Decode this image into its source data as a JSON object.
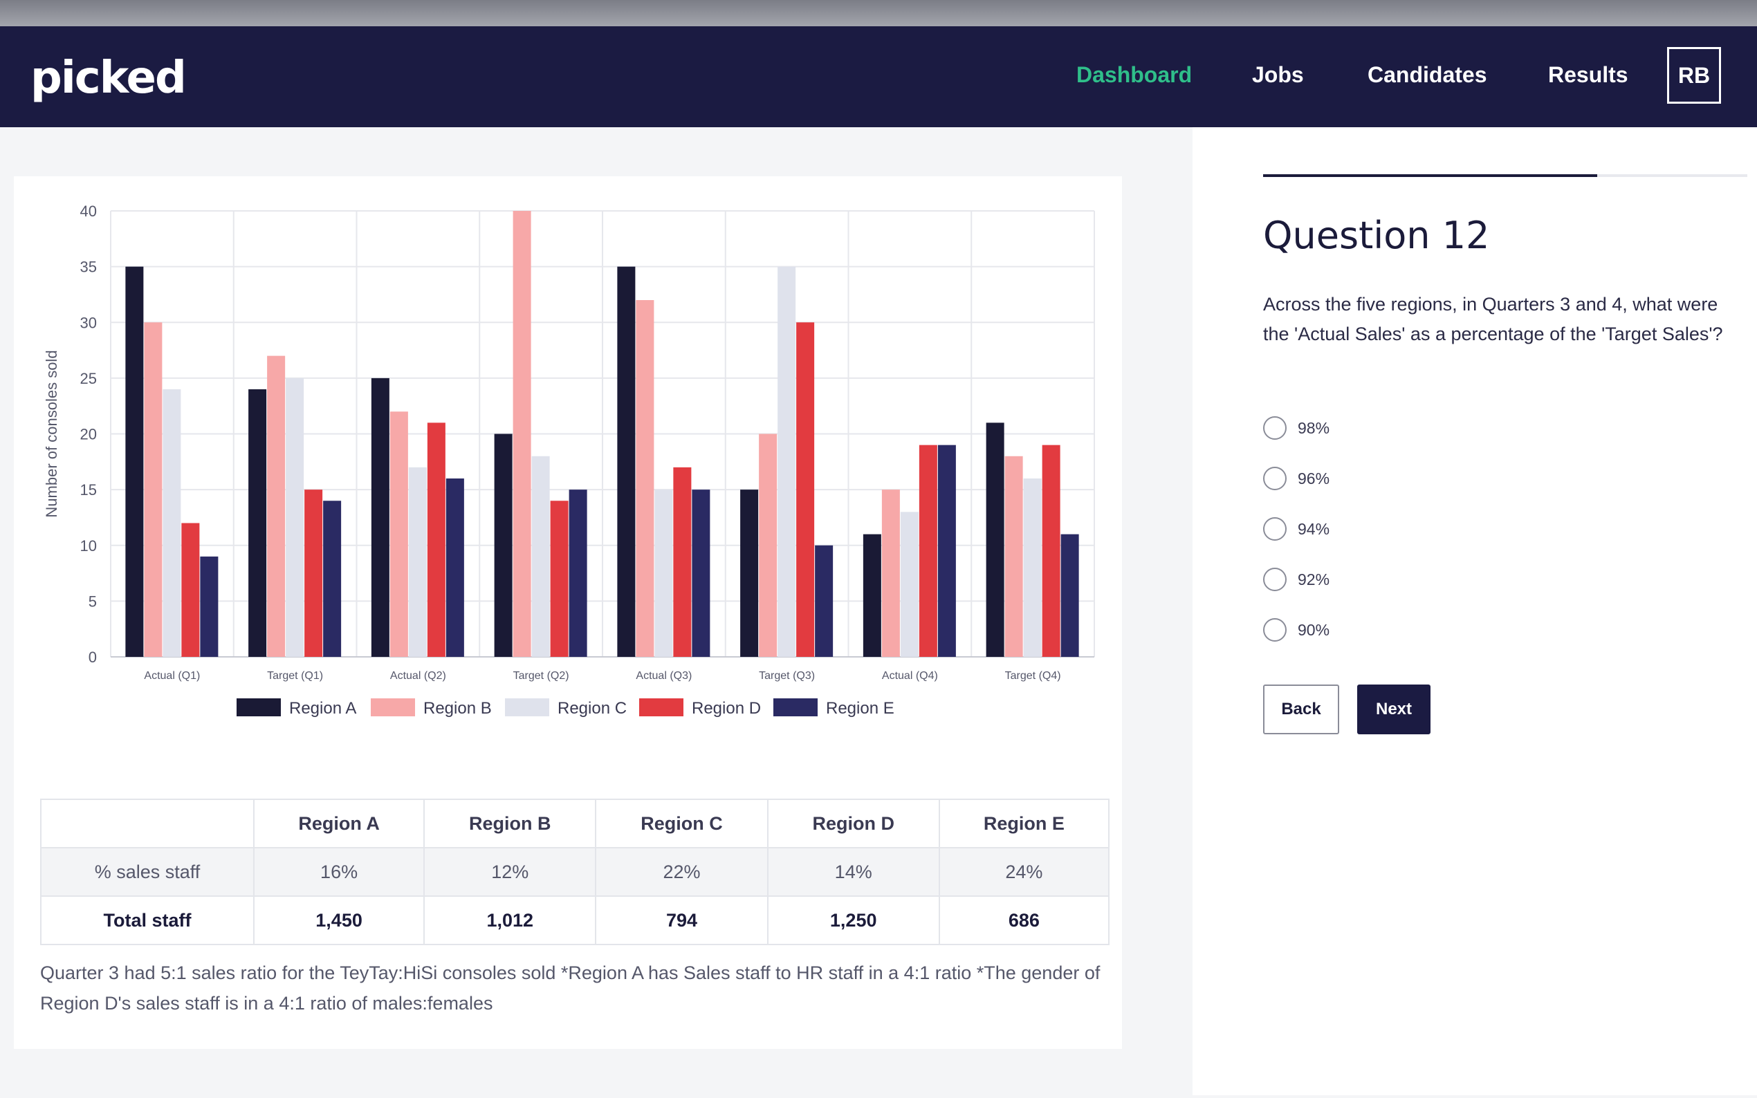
{
  "app": {
    "logo": "picked"
  },
  "nav": {
    "items": [
      {
        "label": "Dashboard",
        "active": true
      },
      {
        "label": "Jobs",
        "active": false
      },
      {
        "label": "Candidates",
        "active": false
      },
      {
        "label": "Results",
        "active": false
      }
    ],
    "avatar": "RB"
  },
  "colors": {
    "navbar": "#1b1b42",
    "active_link": "#2fbf8a",
    "region_a": "#1a1a35",
    "region_b": "#f7a8a8",
    "region_c": "#dfe2ec",
    "region_d": "#e23b40",
    "region_e": "#2a2a63"
  },
  "chart_data": {
    "type": "bar",
    "title": "",
    "xlabel": "",
    "ylabel": "Number of consoles sold",
    "ylim": [
      0,
      40
    ],
    "yticks": [
      0,
      5,
      10,
      15,
      20,
      25,
      30,
      35,
      40
    ],
    "grid": true,
    "legend_position": "bottom",
    "categories": [
      "Actual (Q1)",
      "Target (Q1)",
      "Actual (Q2)",
      "Target (Q2)",
      "Actual (Q3)",
      "Target (Q3)",
      "Actual (Q4)",
      "Target (Q4)"
    ],
    "series": [
      {
        "name": "Region A",
        "color": "#1a1a35",
        "values": [
          35,
          24,
          25,
          20,
          35,
          15,
          11,
          21
        ]
      },
      {
        "name": "Region B",
        "color": "#f7a8a8",
        "values": [
          30,
          27,
          22,
          40,
          32,
          20,
          15,
          18
        ]
      },
      {
        "name": "Region C",
        "color": "#dfe2ec",
        "values": [
          24,
          25,
          17,
          18,
          15,
          35,
          13,
          16
        ]
      },
      {
        "name": "Region D",
        "color": "#e23b40",
        "values": [
          12,
          15,
          21,
          14,
          17,
          30,
          19,
          19
        ]
      },
      {
        "name": "Region E",
        "color": "#2a2a63",
        "values": [
          9,
          14,
          16,
          15,
          15,
          10,
          19,
          11
        ]
      }
    ]
  },
  "table": {
    "headers": [
      "",
      "Region A",
      "Region B",
      "Region C",
      "Region D",
      "Region E"
    ],
    "rows": [
      [
        "% sales staff",
        "16%",
        "12%",
        "22%",
        "14%",
        "24%"
      ],
      [
        "Total staff",
        "1,450",
        "1,012",
        "794",
        "1,250",
        "686"
      ]
    ]
  },
  "note": "Quarter 3 had 5:1 sales ratio for the TeyTay:HiSi consoles sold *Region A has Sales staff to HR staff in a 4:1 ratio *The gender of Region D's sales staff is in a 4:1 ratio of males:females",
  "question": {
    "progress": 0.69,
    "title": "Question 12",
    "text": "Across the five regions, in Quarters 3 and 4, what were the 'Actual Sales' as a percentage of the 'Target Sales'?",
    "options": [
      "98%",
      "96%",
      "94%",
      "92%",
      "90%"
    ],
    "back_label": "Back",
    "next_label": "Next"
  }
}
